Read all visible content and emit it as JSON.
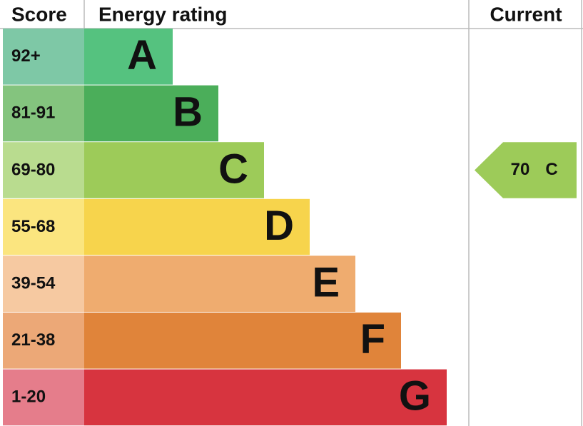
{
  "header": {
    "score": "Score",
    "rating": "Energy rating",
    "current": "Current"
  },
  "rows": [
    {
      "score": "92+",
      "letter": "A"
    },
    {
      "score": "81-91",
      "letter": "B"
    },
    {
      "score": "69-80",
      "letter": "C"
    },
    {
      "score": "55-68",
      "letter": "D"
    },
    {
      "score": "39-54",
      "letter": "E"
    },
    {
      "score": "21-38",
      "letter": "F"
    },
    {
      "score": "1-20",
      "letter": "G"
    }
  ],
  "current": {
    "value": 70,
    "letter": "C"
  }
}
